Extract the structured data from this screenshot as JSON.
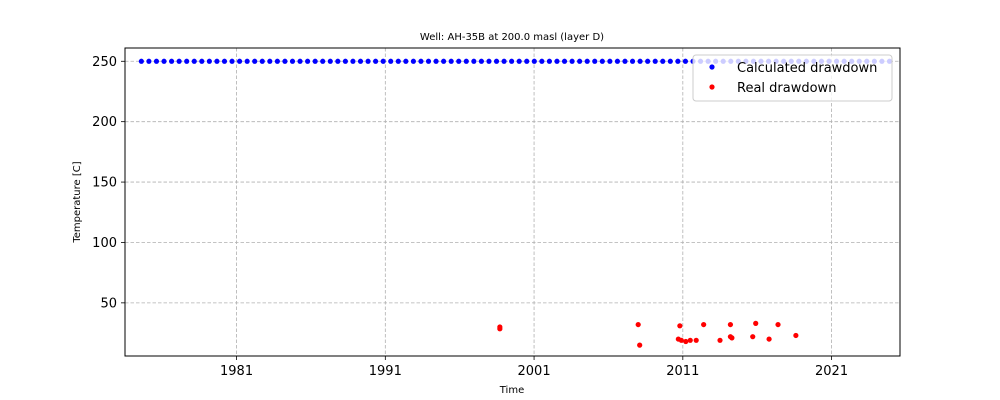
{
  "chart_data": {
    "type": "scatter",
    "title": "Well: AH-35B at 200.0 masl (layer D)",
    "xlabel": "Time",
    "ylabel": "Temperature [C]",
    "x_ticks": [
      1981,
      1991,
      2001,
      2011,
      2021
    ],
    "y_ticks": [
      50,
      100,
      150,
      200,
      250
    ],
    "xlim": [
      1973.5,
      2025.6
    ],
    "ylim": [
      6,
      261
    ],
    "grid": true,
    "legend_position": "top-right",
    "series": [
      {
        "name": "Calculated drawdown",
        "color": "#0000ff",
        "x_start": 1974.6,
        "x_end": 2024.9,
        "x_step": 0.508,
        "y_constant": 250
      },
      {
        "name": "Real drawdown",
        "color": "#ff0000",
        "points": [
          {
            "x": 1998.7,
            "y": 30
          },
          {
            "x": 1998.7,
            "y": 28.5
          },
          {
            "x": 2008.0,
            "y": 32
          },
          {
            "x": 2008.1,
            "y": 15
          },
          {
            "x": 2010.8,
            "y": 31
          },
          {
            "x": 2010.7,
            "y": 20
          },
          {
            "x": 2010.9,
            "y": 19
          },
          {
            "x": 2011.2,
            "y": 18
          },
          {
            "x": 2011.5,
            "y": 19
          },
          {
            "x": 2011.9,
            "y": 19
          },
          {
            "x": 2012.4,
            "y": 32
          },
          {
            "x": 2013.5,
            "y": 19
          },
          {
            "x": 2014.2,
            "y": 32
          },
          {
            "x": 2014.2,
            "y": 22
          },
          {
            "x": 2014.3,
            "y": 21
          },
          {
            "x": 2015.7,
            "y": 22
          },
          {
            "x": 2015.9,
            "y": 33
          },
          {
            "x": 2016.8,
            "y": 20
          },
          {
            "x": 2017.4,
            "y": 32
          },
          {
            "x": 2018.6,
            "y": 23
          }
        ]
      }
    ]
  }
}
